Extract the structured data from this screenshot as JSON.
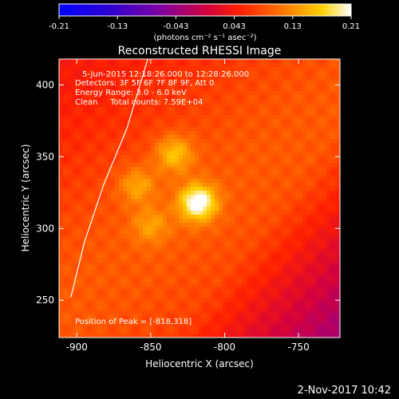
{
  "chart_data": {
    "type": "heatmap",
    "title": "Reconstructed RHESSI Image",
    "xlabel": "Heliocentric X (arcsec)",
    "ylabel": "Heliocentric Y (arcsec)",
    "x_ticks": [
      "-900",
      "-850",
      "-800",
      "-750"
    ],
    "x_tick_values": [
      -900,
      -850,
      -800,
      -750
    ],
    "y_ticks": [
      "250",
      "300",
      "350",
      "400"
    ],
    "y_tick_values": [
      250,
      300,
      350,
      400
    ],
    "xlim": [
      -912,
      -722
    ],
    "ylim": [
      224,
      418
    ],
    "colorbar": {
      "ticks": [
        "-0.21",
        "-0.13",
        "-0.043",
        "0.043",
        "0.13",
        "0.21"
      ],
      "range": [
        -0.21,
        0.21
      ],
      "unit_label": "(photons cm⁻² s⁻¹ asec⁻²)",
      "colormap": [
        "#0000ff",
        "#4000c0",
        "#8000a0",
        "#c00060",
        "#ff0000",
        "#ff8000",
        "#ffd000",
        "#ffffff"
      ]
    },
    "annotations": [
      "5-Jun-2015 12:18:26.000 to 12:28:26.000",
      "Detectors: 3F 5F 6F 7F 8F 9F, Att 0",
      "Energy Range: 3.0 - 6.0 keV",
      "Clean     Total counts: 7.59E+04"
    ],
    "peak_label": "Position of Peak = [-818,318]",
    "peak": [
      -818,
      318
    ],
    "sources": [
      {
        "x": -818,
        "y": 318,
        "intensity": 0.21
      },
      {
        "x": -834,
        "y": 352,
        "intensity": 0.15
      },
      {
        "x": -859,
        "y": 330,
        "intensity": 0.13
      },
      {
        "x": -850,
        "y": 302,
        "intensity": 0.12
      }
    ]
  },
  "footer_date": "2-Nov-2017 10:42"
}
